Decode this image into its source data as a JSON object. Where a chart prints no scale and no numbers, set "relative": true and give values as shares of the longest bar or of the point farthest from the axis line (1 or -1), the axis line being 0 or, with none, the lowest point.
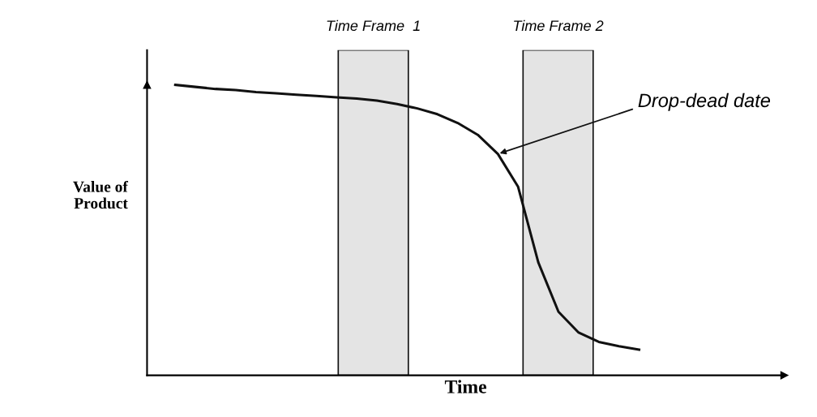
{
  "chart_data": {
    "type": "line",
    "relative": true,
    "xlabel": "Time",
    "ylabel": "Value of\nProduct",
    "categories": [
      null,
      null,
      null,
      null,
      null,
      null,
      null,
      null,
      null,
      null,
      null,
      null,
      null,
      null,
      null,
      null,
      null,
      null,
      null,
      null,
      null,
      null,
      null,
      null
    ],
    "series": [
      {
        "color": "#111111",
        "values": [
          1.0,
          0.993,
          0.986,
          0.982,
          0.975,
          0.971,
          0.966,
          0.962,
          0.957,
          0.953,
          0.946,
          0.934,
          0.919,
          0.899,
          0.869,
          0.828,
          0.762,
          0.649,
          0.389,
          0.219,
          0.147,
          0.115,
          0.1,
          0.088
        ]
      }
    ],
    "annotations": [
      "Time Frame  1",
      "Time Frame 2",
      "Drop-dead date"
    ],
    "legend": false,
    "marker": "none",
    "line_style": "solid"
  }
}
